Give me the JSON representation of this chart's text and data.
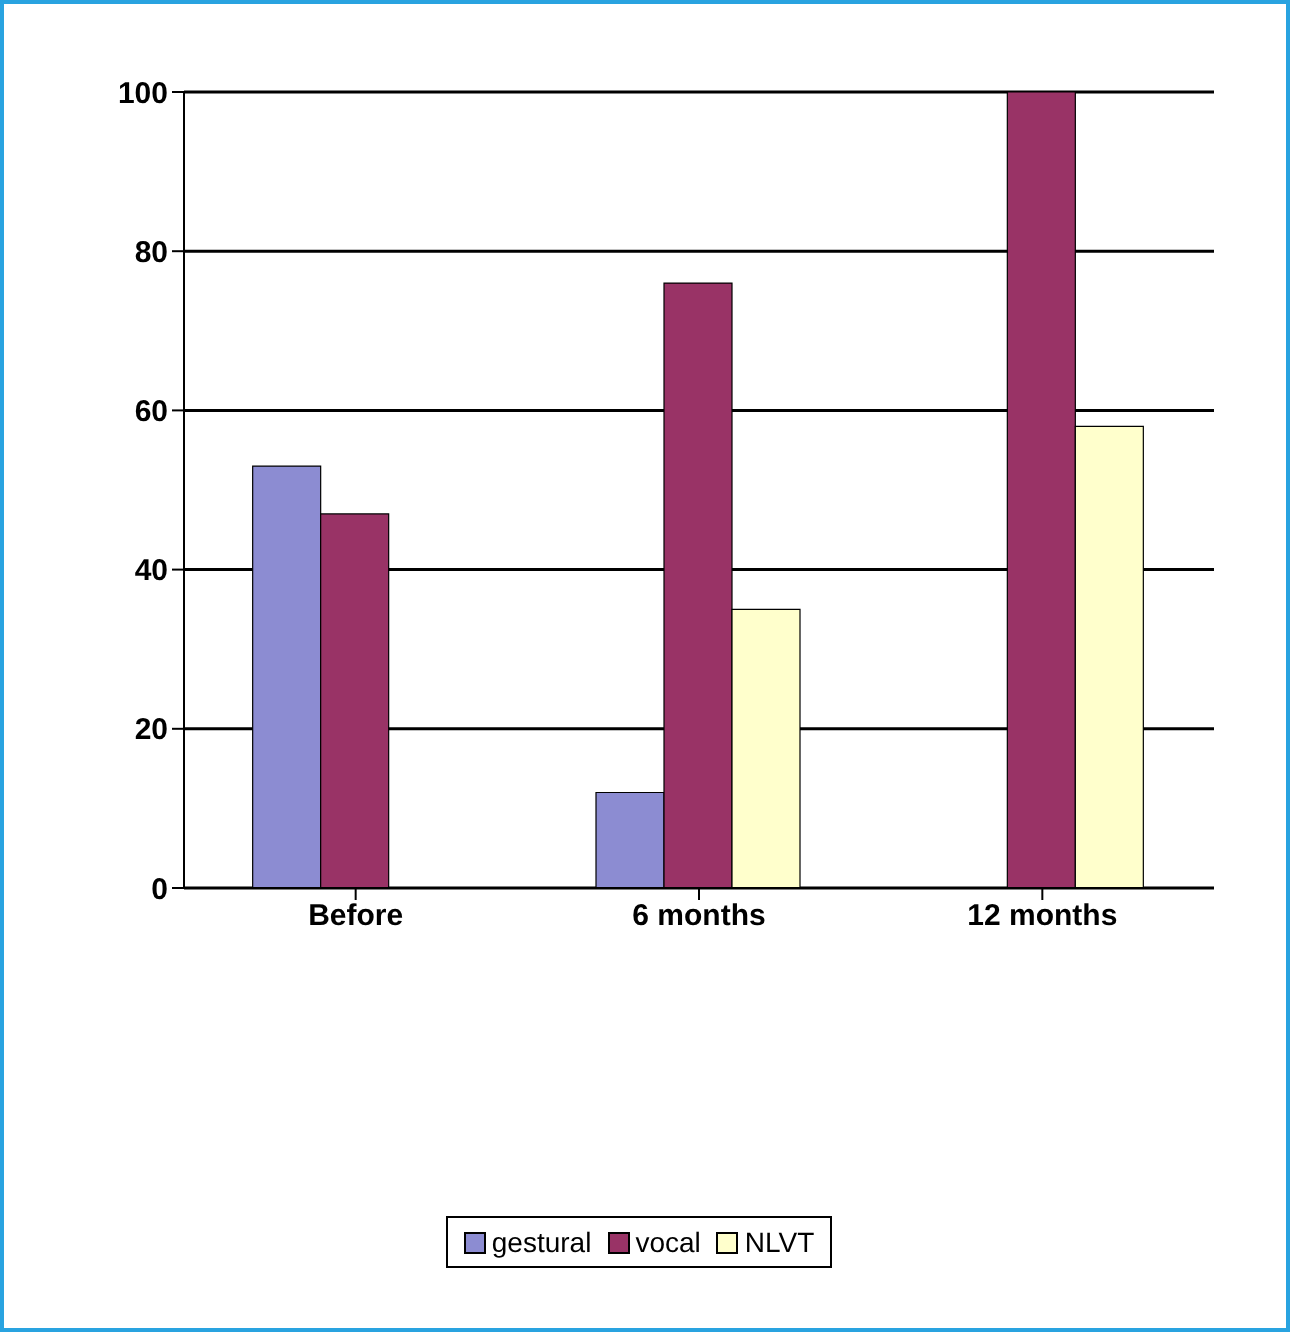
{
  "chart_data": {
    "type": "bar",
    "categories": [
      "Before",
      "6 months",
      "12 months"
    ],
    "series": [
      {
        "name": "gestural",
        "color": "#8c8cd2",
        "values": [
          53,
          12,
          0
        ]
      },
      {
        "name": "vocal",
        "color": "#993366",
        "values": [
          47,
          76,
          100
        ]
      },
      {
        "name": "NLVT",
        "color": "#ffffcc",
        "values": [
          null,
          35,
          58
        ]
      }
    ],
    "ylim": [
      0,
      100
    ],
    "yticks": [
      0,
      20,
      40,
      60,
      80,
      100
    ],
    "grid": "y",
    "legend": "bottom"
  }
}
